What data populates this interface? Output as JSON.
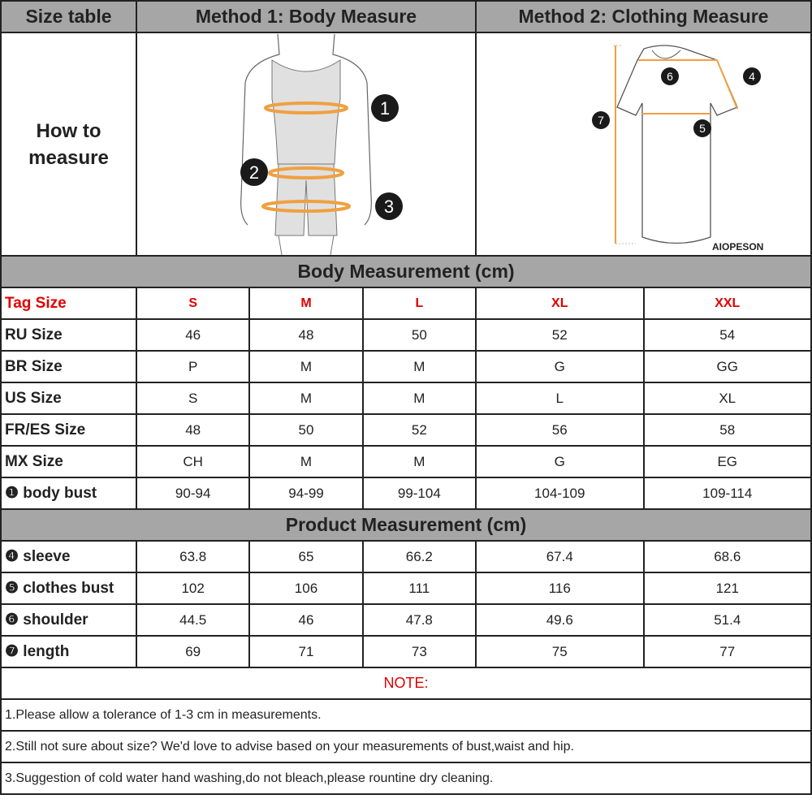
{
  "header": {
    "col1": "Size table",
    "col2": "Method 1: Body  Measure",
    "col3": "Method 2: Clothing Measure"
  },
  "how_to": {
    "line1": "How to",
    "line2": "measure"
  },
  "figures": {
    "body_markers": [
      "1",
      "2",
      "3"
    ],
    "shirt_markers": [
      "4",
      "5",
      "6",
      "7"
    ],
    "brand": "AIOPESON",
    "accent": "#f0a040"
  },
  "body_section": {
    "title": "Body Measurement (cm)"
  },
  "tag_row": {
    "label": "Tag Size",
    "sizes": [
      "S",
      "M",
      "L",
      "XL",
      "XXL"
    ]
  },
  "body_rows": [
    {
      "label": "RU Size",
      "values": [
        "46",
        "48",
        "50",
        "52",
        "54"
      ]
    },
    {
      "label": "BR Size",
      "values": [
        "P",
        "M",
        "M",
        "G",
        "GG"
      ]
    },
    {
      "label": "US Size",
      "values": [
        "S",
        "M",
        "M",
        "L",
        "XL"
      ]
    },
    {
      "label": "FR/ES Size",
      "values": [
        "48",
        "50",
        "52",
        "56",
        "58"
      ]
    },
    {
      "label": "MX Size",
      "values": [
        "CH",
        "M",
        "M",
        "G",
        "EG"
      ]
    },
    {
      "label": "❶ body bust",
      "values": [
        "90-94",
        "94-99",
        "99-104",
        "104-109",
        "109-114"
      ]
    }
  ],
  "product_section": {
    "title": "Product Measurement (cm)"
  },
  "product_rows": [
    {
      "label": "❹ sleeve",
      "values": [
        "63.8",
        "65",
        "66.2",
        "67.4",
        "68.6"
      ]
    },
    {
      "label": "❺ clothes bust",
      "values": [
        "102",
        "106",
        "111",
        "116",
        "121"
      ]
    },
    {
      "label": "❻ shoulder",
      "values": [
        "44.5",
        "46",
        "47.8",
        "49.6",
        "51.4"
      ]
    },
    {
      "label": "❼ length",
      "values": [
        "69",
        "71",
        "73",
        "75",
        "77"
      ]
    }
  ],
  "notes": {
    "title": "NOTE:",
    "items": [
      "1.Please allow a tolerance of 1-3 cm in measurements.",
      "2.Still not sure about size? We'd love to advise based on your measurements of bust,waist and hip.",
      "3.Suggestion of cold water hand washing,do not bleach,please rountine dry cleaning."
    ]
  }
}
